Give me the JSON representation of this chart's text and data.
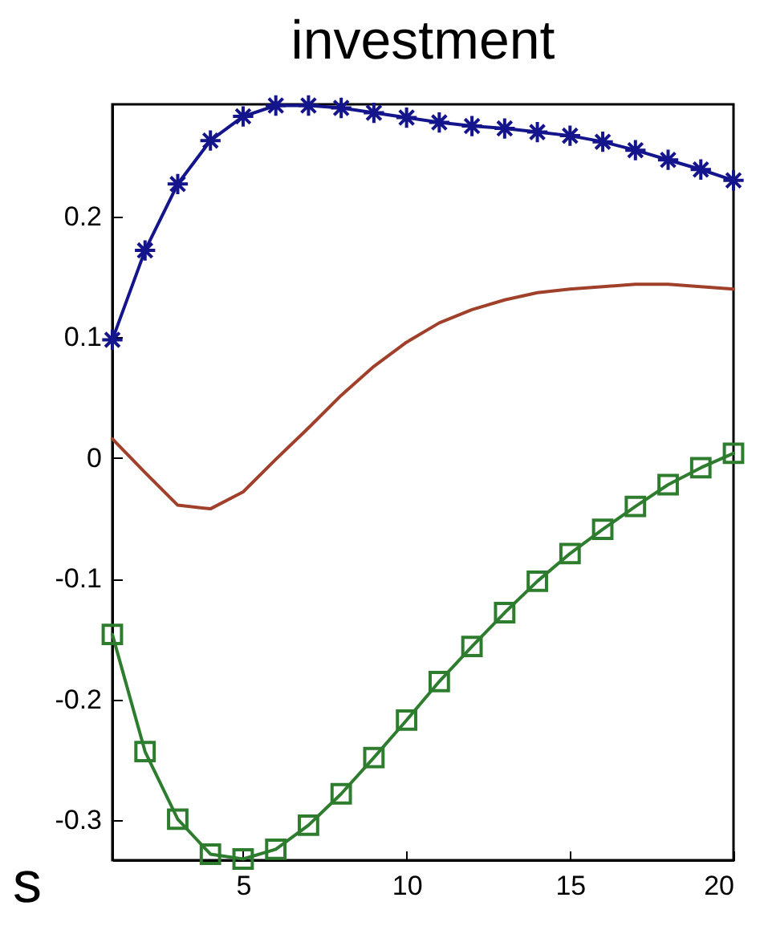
{
  "chart_data": {
    "type": "line",
    "title": "investment",
    "annotations": [
      "s"
    ],
    "x": [
      1,
      2,
      3,
      4,
      5,
      6,
      7,
      8,
      9,
      10,
      11,
      12,
      13,
      14,
      15,
      16,
      17,
      18,
      19,
      20
    ],
    "xlim": [
      1,
      20
    ],
    "xticks": [
      5,
      10,
      15,
      20
    ],
    "ylim": [
      -0.333,
      0.293
    ],
    "yticks": [
      -0.3,
      -0.2,
      -0.1,
      0,
      0.1,
      0.2
    ],
    "series": [
      {
        "color": "#14148c",
        "marker": "cross",
        "values": [
          0.098,
          0.172,
          0.227,
          0.263,
          0.283,
          0.292,
          0.292,
          0.29,
          0.286,
          0.282,
          0.278,
          0.275,
          0.273,
          0.27,
          0.267,
          0.262,
          0.255,
          0.247,
          0.239,
          0.23
        ]
      },
      {
        "color": "#a0402a",
        "marker": "none",
        "values": [
          0.016,
          -0.012,
          -0.039,
          -0.042,
          -0.028,
          -0.001,
          0.025,
          0.052,
          0.076,
          0.096,
          0.112,
          0.123,
          0.131,
          0.137,
          0.14,
          0.142,
          0.144,
          0.144,
          0.142,
          0.14
        ]
      },
      {
        "color": "#2e7d2e",
        "marker": "square",
        "values": [
          -0.146,
          -0.243,
          -0.299,
          -0.328,
          -0.332,
          -0.324,
          -0.304,
          -0.278,
          -0.248,
          -0.217,
          -0.185,
          -0.156,
          -0.128,
          -0.102,
          -0.079,
          -0.059,
          -0.04,
          -0.022,
          -0.008,
          0.004
        ]
      }
    ]
  }
}
